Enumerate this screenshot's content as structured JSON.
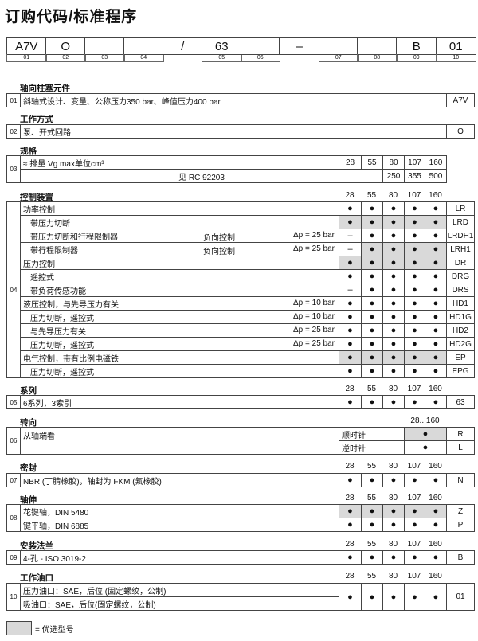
{
  "title": "订购代码/标准程序",
  "code_boxes": [
    {
      "value": "A7V",
      "num": "01"
    },
    {
      "value": "O",
      "num": "02"
    },
    {
      "value": "",
      "num": "03"
    },
    {
      "value": "",
      "num": "04"
    },
    {
      "value": "/",
      "num": ""
    },
    {
      "value": "63",
      "num": "05"
    },
    {
      "value": "",
      "num": "06"
    },
    {
      "value": "–",
      "num": ""
    },
    {
      "value": "",
      "num": "07"
    },
    {
      "value": "",
      "num": "08"
    },
    {
      "value": "B",
      "num": "09"
    },
    {
      "value": "01",
      "num": "10"
    }
  ],
  "sizes": [
    "28",
    "55",
    "80",
    "107",
    "160"
  ],
  "sections": [
    {
      "num": "01",
      "heading": "轴向柱塞元件",
      "rows": [
        {
          "text": "斜轴式设计、变量、公称压力350 bar、峰值压力400 bar",
          "code": "A7V"
        }
      ]
    },
    {
      "num": "02",
      "heading": "工作方式",
      "rows": [
        {
          "text": "泵、开式回路",
          "code": "O"
        }
      ]
    },
    {
      "num": "03",
      "heading": "规格",
      "rows": [
        {
          "text": "≈ 排量 Vg max单位cm³",
          "values": [
            "28",
            "55",
            "80",
            "107",
            "160"
          ]
        },
        {
          "text": "见 RC 92203",
          "values": [
            "250",
            "355",
            "500"
          ]
        }
      ]
    },
    {
      "num": "04",
      "heading": "控制装置",
      "show_sizes": true,
      "rows": [
        {
          "text": "功率控制",
          "indent": false,
          "dots": [
            "●",
            "●",
            "●",
            "●",
            "●"
          ],
          "shaded": [
            false,
            false,
            false,
            false,
            false
          ],
          "code": "LR"
        },
        {
          "text": "带压力切断",
          "indent": true,
          "dots": [
            "●",
            "●",
            "●",
            "●",
            "●"
          ],
          "shaded": [
            true,
            true,
            true,
            true,
            true
          ],
          "code": "LRD"
        },
        {
          "text": "带压力切断和行程限制器",
          "indent": true,
          "note": "负向控制",
          "dp": "Δp = 25 bar",
          "dots": [
            "–",
            "●",
            "●",
            "●",
            "●"
          ],
          "shaded": [
            false,
            false,
            false,
            false,
            false
          ],
          "code": "LRDH1"
        },
        {
          "text": "带行程限制器",
          "indent": true,
          "note": "负向控制",
          "dp": "Δp = 25 bar",
          "dots": [
            "–",
            "●",
            "●",
            "●",
            "●"
          ],
          "shaded": [
            false,
            true,
            true,
            true,
            true
          ],
          "code": "LRH1"
        },
        {
          "text": "压力控制",
          "indent": false,
          "dots": [
            "●",
            "●",
            "●",
            "●",
            "●"
          ],
          "shaded": [
            true,
            true,
            true,
            true,
            true
          ],
          "code": "DR"
        },
        {
          "text": "遥控式",
          "indent": true,
          "dots": [
            "●",
            "●",
            "●",
            "●",
            "●"
          ],
          "shaded": [
            false,
            false,
            false,
            false,
            false
          ],
          "code": "DRG"
        },
        {
          "text": "带负荷传感功能",
          "indent": true,
          "dots": [
            "–",
            "●",
            "●",
            "●",
            "●"
          ],
          "shaded": [
            false,
            false,
            false,
            false,
            false
          ],
          "code": "DRS"
        },
        {
          "text": "液压控制，与先导压力有关",
          "indent": false,
          "dp": "Δp = 10 bar",
          "dots": [
            "●",
            "●",
            "●",
            "●",
            "●"
          ],
          "shaded": [
            false,
            false,
            false,
            false,
            false
          ],
          "code": "HD1"
        },
        {
          "text": "压力切断，遥控式",
          "indent": true,
          "dp": "Δp = 10 bar",
          "dots": [
            "●",
            "●",
            "●",
            "●",
            "●"
          ],
          "shaded": [
            false,
            false,
            false,
            false,
            false
          ],
          "code": "HD1G"
        },
        {
          "text": "与先导压力有关",
          "indent": true,
          "dp": "Δp = 25 bar",
          "dots": [
            "●",
            "●",
            "●",
            "●",
            "●"
          ],
          "shaded": [
            false,
            false,
            false,
            false,
            false
          ],
          "code": "HD2"
        },
        {
          "text": "压力切断，遥控式",
          "indent": true,
          "dp": "Δp = 25 bar",
          "dots": [
            "●",
            "●",
            "●",
            "●",
            "●"
          ],
          "shaded": [
            false,
            false,
            false,
            false,
            false
          ],
          "code": "HD2G"
        },
        {
          "text": "电气控制，带有比例电磁铁",
          "indent": false,
          "dots": [
            "●",
            "●",
            "●",
            "●",
            "●"
          ],
          "shaded": [
            true,
            true,
            true,
            true,
            true
          ],
          "code": "EP"
        },
        {
          "text": "压力切断，遥控式",
          "indent": true,
          "dots": [
            "●",
            "●",
            "●",
            "●",
            "●"
          ],
          "shaded": [
            false,
            false,
            false,
            false,
            false
          ],
          "code": "EPG"
        }
      ]
    },
    {
      "num": "05",
      "heading": "系列",
      "show_sizes": true,
      "rows": [
        {
          "text": "6系列，3索引",
          "dots": [
            "●",
            "●",
            "●",
            "●",
            "●"
          ],
          "shaded": [
            false,
            false,
            false,
            false,
            false
          ],
          "code": "63"
        }
      ]
    },
    {
      "num": "06",
      "heading": "转向",
      "size_range": "28...160",
      "text": "从轴端看",
      "rows": [
        {
          "label": "顺时针",
          "dot": "●",
          "shaded": true,
          "code": "R"
        },
        {
          "label": "逆时针",
          "dot": "●",
          "shaded": false,
          "code": "L"
        }
      ]
    },
    {
      "num": "07",
      "heading": "密封",
      "show_sizes": true,
      "rows": [
        {
          "text": "NBR (丁腈橡胶)，轴封为 FKM (氟橡胶)",
          "dots": [
            "●",
            "●",
            "●",
            "●",
            "●"
          ],
          "shaded": [
            false,
            false,
            false,
            false,
            false
          ],
          "code": "N"
        }
      ]
    },
    {
      "num": "08",
      "heading": "轴伸",
      "show_sizes": true,
      "rows": [
        {
          "text": "花键轴，DIN 5480",
          "dots": [
            "●",
            "●",
            "●",
            "●",
            "●"
          ],
          "shaded": [
            true,
            true,
            true,
            true,
            true
          ],
          "code": "Z"
        },
        {
          "text": "键平轴，DIN 6885",
          "dots": [
            "●",
            "●",
            "●",
            "●",
            "●"
          ],
          "shaded": [
            false,
            false,
            false,
            false,
            false
          ],
          "code": "P"
        }
      ]
    },
    {
      "num": "09",
      "heading": "安装法兰",
      "show_sizes": true,
      "rows": [
        {
          "text": "4-孔 - ISO 3019-2",
          "dots": [
            "●",
            "●",
            "●",
            "●",
            "●"
          ],
          "shaded": [
            false,
            false,
            false,
            false,
            false
          ],
          "code": "B"
        }
      ]
    },
    {
      "num": "10",
      "heading": "工作油口",
      "show_sizes": true,
      "texts": [
        "压力油口：SAE，后位 (固定螺纹，公制)",
        "吸油口：SAE，后位(固定螺纹，公制)"
      ],
      "dots": [
        "●",
        "●",
        "●",
        "●",
        "●"
      ],
      "shaded": [
        false,
        false,
        false,
        false,
        false
      ],
      "code": "01"
    }
  ],
  "legend": {
    "text": "= 优选型号",
    "color": "#d9d9d9"
  }
}
